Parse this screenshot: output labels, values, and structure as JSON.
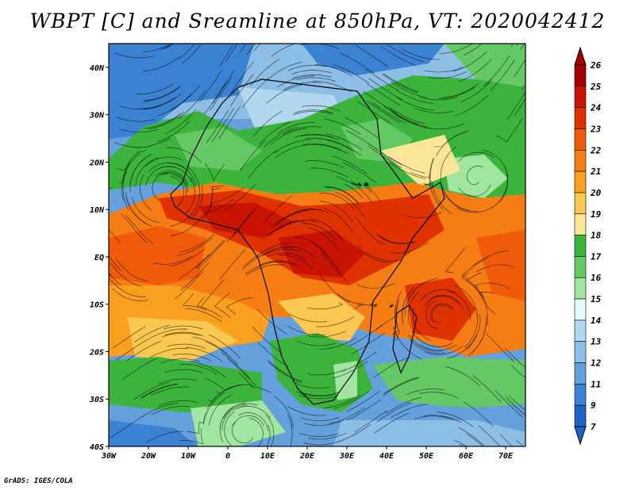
{
  "title": "WBPT [C] and Sreamline at 850hPa, VT: 2020042412",
  "credit": "GrADS: IGES/COLA",
  "map": {
    "lon_range": [
      -30,
      75
    ],
    "lat_range": [
      -40,
      45
    ],
    "lon_ticks": [
      "30W",
      "20W",
      "10W",
      "0",
      "10E",
      "20E",
      "30E",
      "40E",
      "50E",
      "60E",
      "70E"
    ],
    "lat_ticks": [
      "40N",
      "30N",
      "20N",
      "10N",
      "EQ",
      "10S",
      "20S",
      "30S",
      "40S"
    ]
  },
  "colorbar": {
    "labels": [
      "26",
      "25",
      "24",
      "23",
      "22",
      "21",
      "20",
      "19",
      "18",
      "17",
      "16",
      "15",
      "14",
      "13",
      "12",
      "11",
      "9",
      "7"
    ],
    "colors": [
      "#a50000",
      "#c81400",
      "#e03200",
      "#f05a0a",
      "#f57d14",
      "#faa01e",
      "#fac850",
      "#fae696",
      "#3cb43c",
      "#64c864",
      "#a0e6a0",
      "#e6fafa",
      "#b4d7f0",
      "#8cbee6",
      "#64a0dc",
      "#3c82d2",
      "#1e64c8"
    ]
  },
  "icons": {
    "streamlines": "streamline-overlay",
    "colorbar_arrows": "triangle-ends"
  }
}
